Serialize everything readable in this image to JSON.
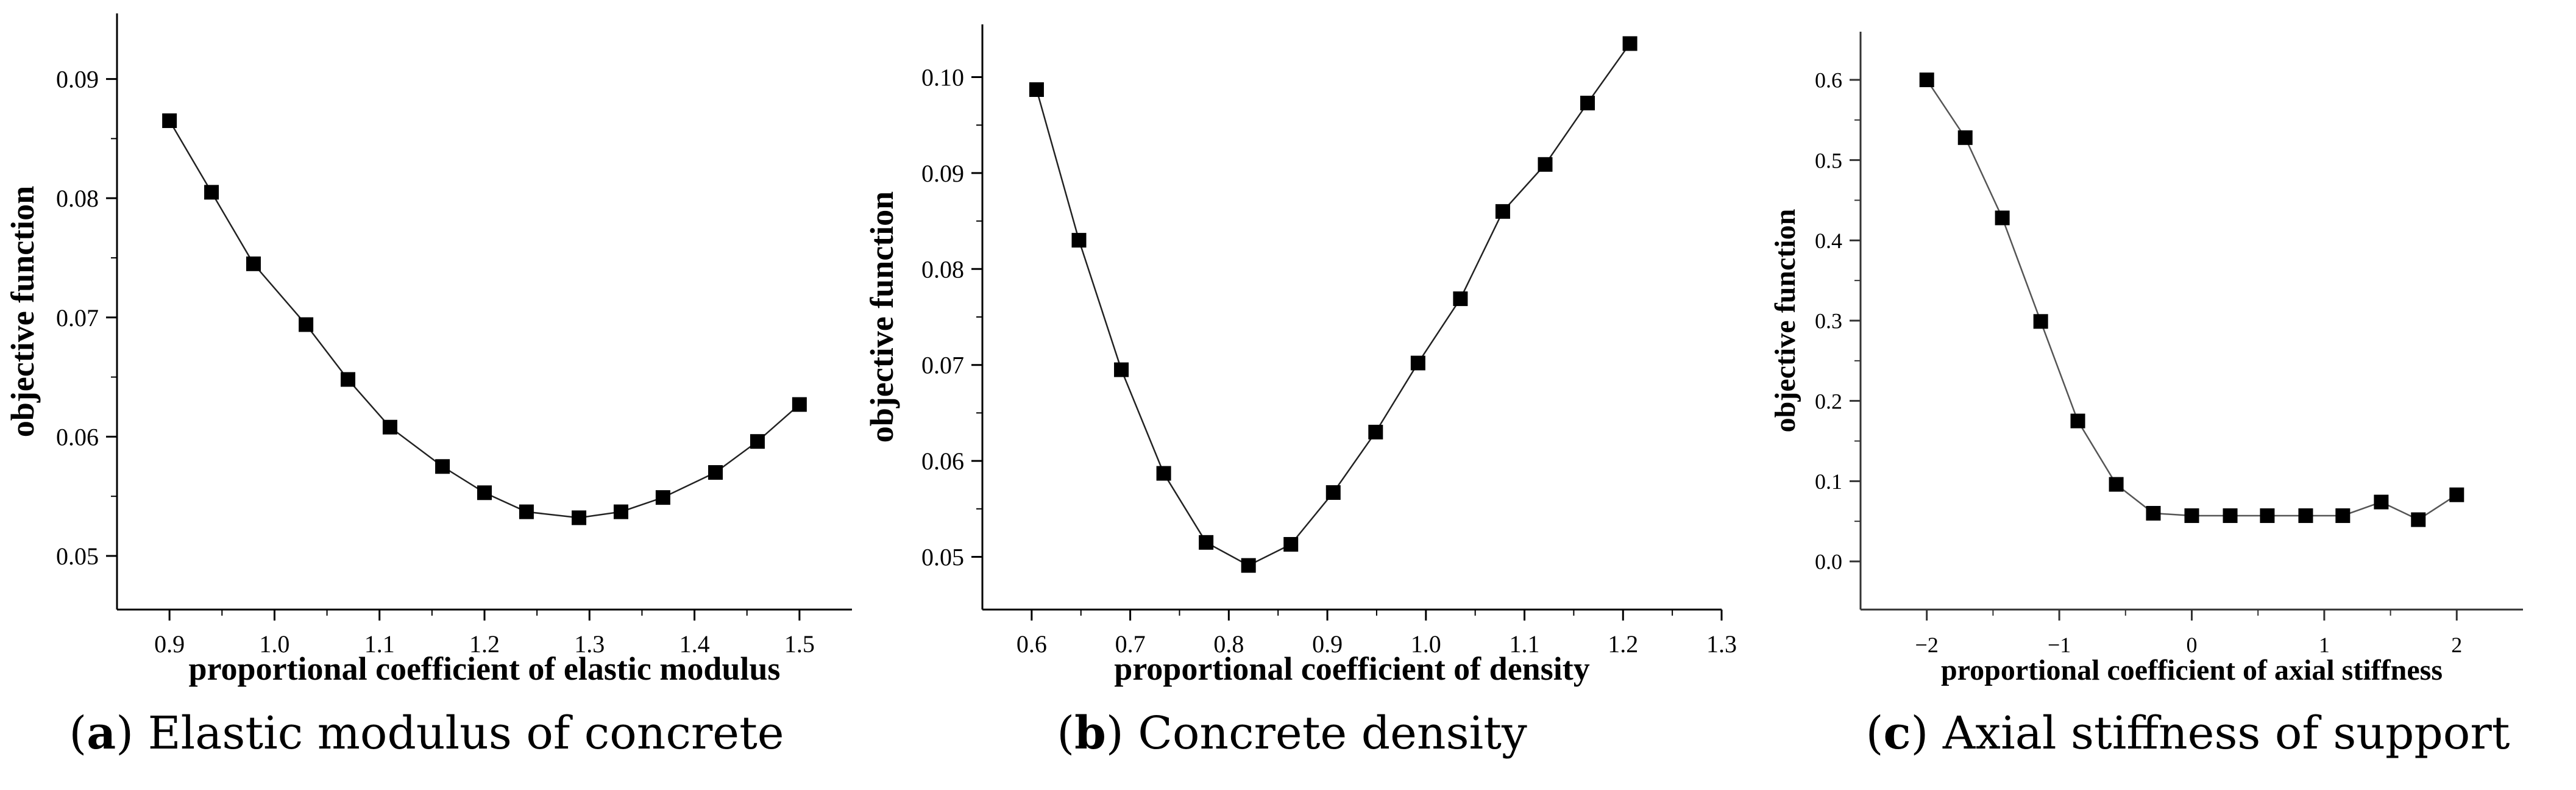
{
  "chart_data": [
    {
      "type": "line",
      "caption": {
        "tag": "a",
        "text": "Elastic modulus of concrete"
      },
      "xlabel": "proportional coefficient of elastic modulus",
      "ylabel": "objective function",
      "xlim": [
        0.85,
        1.55
      ],
      "ylim": [
        0.0455,
        0.0955
      ],
      "xticks": [
        0.9,
        1.0,
        1.1,
        1.2,
        1.3,
        1.4,
        1.5
      ],
      "xtick_labels": [
        "0.9",
        "1.0",
        "1.1",
        "1.2",
        "1.3",
        "1.4",
        "1.5"
      ],
      "yticks": [
        0.05,
        0.06,
        0.07,
        0.08,
        0.09
      ],
      "ytick_labels": [
        "0.05",
        "0.06",
        "0.07",
        "0.08",
        "0.09"
      ],
      "x": [
        0.9,
        0.94,
        0.98,
        1.03,
        1.07,
        1.11,
        1.16,
        1.2,
        1.24,
        1.29,
        1.33,
        1.37,
        1.42,
        1.46,
        1.5
      ],
      "y": [
        0.0865,
        0.0805,
        0.0745,
        0.0694,
        0.0648,
        0.0608,
        0.0575,
        0.0553,
        0.0537,
        0.0532,
        0.0537,
        0.0549,
        0.057,
        0.0596,
        0.0627
      ],
      "grid": false
    },
    {
      "type": "line",
      "caption": {
        "tag": "b",
        "text": "Concrete density"
      },
      "xlabel": "proportional coefficient of density",
      "ylabel": "objective function",
      "xlim": [
        0.55,
        1.3
      ],
      "ylim": [
        0.0445,
        0.1055
      ],
      "xticks": [
        0.6,
        0.7,
        0.8,
        0.9,
        1.0,
        1.1,
        1.2,
        1.3
      ],
      "xtick_labels": [
        "0.6",
        "0.7",
        "0.8",
        "0.9",
        "1.0",
        "1.1",
        "1.2",
        "1.3"
      ],
      "yticks": [
        0.05,
        0.06,
        0.07,
        0.08,
        0.09,
        0.1
      ],
      "ytick_labels": [
        "0.05",
        "0.06",
        "0.07",
        "0.08",
        "0.09",
        "0.10"
      ],
      "x": [
        0.605,
        0.648,
        0.691,
        0.734,
        0.777,
        0.82,
        0.863,
        0.906,
        0.949,
        0.992,
        1.035,
        1.078,
        1.121,
        1.164,
        1.207
      ],
      "y": [
        0.0987,
        0.083,
        0.0695,
        0.0587,
        0.0515,
        0.0491,
        0.0513,
        0.0567,
        0.063,
        0.0702,
        0.0769,
        0.086,
        0.0909,
        0.0973,
        0.1035
      ],
      "grid": false
    },
    {
      "type": "line",
      "caption": {
        "tag": "c",
        "text": "Axial stiffness of support"
      },
      "xlabel": "proportional coefficient of axial stiffness",
      "ylabel": "objective function",
      "xlim": [
        -2.5,
        2.5
      ],
      "ylim": [
        -0.06,
        0.66
      ],
      "xticks": [
        -2,
        -1,
        0,
        1,
        2
      ],
      "xtick_labels": [
        "−2",
        "−1",
        "0",
        "1",
        "2"
      ],
      "yticks": [
        0.0,
        0.1,
        0.2,
        0.3,
        0.4,
        0.5,
        0.6
      ],
      "ytick_labels": [
        "0.0",
        "0.1",
        "0.2",
        "0.3",
        "0.4",
        "0.5",
        "0.6"
      ],
      "x": [
        -2.0,
        -1.71,
        -1.43,
        -1.14,
        -0.86,
        -0.57,
        -0.29,
        0.0,
        0.29,
        0.57,
        0.86,
        1.14,
        1.43,
        1.71,
        2.0
      ],
      "y": [
        0.6,
        0.528,
        0.428,
        0.299,
        0.175,
        0.096,
        0.06,
        0.057,
        0.057,
        0.057,
        0.057,
        0.057,
        0.074,
        0.052,
        0.083
      ],
      "grid": false
    }
  ]
}
